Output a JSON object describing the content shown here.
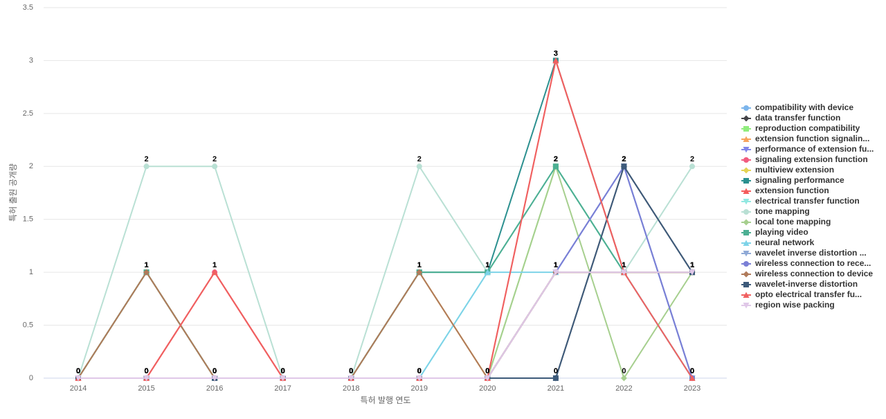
{
  "chart_data": {
    "type": "line",
    "x_label": "특허 발행 연도",
    "y_label": "특허 출원 공개량",
    "categories": [
      "2014",
      "2015",
      "2016",
      "2017",
      "2018",
      "2019",
      "2020",
      "2021",
      "2022",
      "2023"
    ],
    "ylim": [
      0,
      3.5
    ],
    "yticks": [
      0,
      0.5,
      1,
      1.5,
      2,
      2.5,
      3,
      3.5
    ],
    "grid": true,
    "series": [
      {
        "name": "compatibility with device",
        "color": "#7cb5ec",
        "values": [
          0,
          0,
          0,
          0,
          0,
          0,
          0,
          1,
          2,
          0
        ]
      },
      {
        "name": "data transfer function",
        "color": "#434348",
        "values": [
          0,
          0,
          0,
          0,
          0,
          0,
          0,
          0,
          2,
          1
        ]
      },
      {
        "name": "reproduction compatibility",
        "color": "#90ed7d",
        "values": [
          0,
          0,
          0,
          0,
          0,
          0,
          0,
          2,
          1,
          1
        ]
      },
      {
        "name": "extension function signalin...",
        "color": "#f7a35c",
        "values": [
          0,
          1,
          0,
          0,
          0,
          1,
          0,
          1,
          1,
          1
        ]
      },
      {
        "name": "performance of extension fu...",
        "color": "#8085e9",
        "values": [
          0,
          0,
          0,
          0,
          0,
          0,
          0,
          1,
          2,
          0
        ]
      },
      {
        "name": "signaling extension function",
        "color": "#f15c80",
        "values": [
          0,
          0,
          1,
          0,
          0,
          0,
          0,
          1,
          1,
          1
        ]
      },
      {
        "name": "multiview extension",
        "color": "#e4d354",
        "values": [
          0,
          1,
          0,
          0,
          0,
          1,
          0,
          1,
          1,
          1
        ]
      },
      {
        "name": "signaling performance",
        "color": "#2b908f",
        "values": [
          0,
          1,
          0,
          0,
          0,
          1,
          1,
          3,
          1,
          1
        ]
      },
      {
        "name": "extension function",
        "color": "#f45b5b",
        "values": [
          0,
          0,
          1,
          0,
          0,
          0,
          0,
          3,
          1,
          0
        ]
      },
      {
        "name": "electrical transfer function",
        "color": "#91e8e1",
        "values": [
          0,
          0,
          0,
          0,
          0,
          0,
          1,
          2,
          1,
          0
        ]
      },
      {
        "name": "tone mapping",
        "color": "#b9e0d4",
        "values": [
          0,
          2,
          2,
          0,
          0,
          2,
          1,
          2,
          1,
          2
        ]
      },
      {
        "name": "local tone mapping",
        "color": "#a6cf8e",
        "values": [
          0,
          0,
          0,
          0,
          0,
          0,
          0,
          2,
          0,
          1
        ]
      },
      {
        "name": "playing video",
        "color": "#4caf93",
        "values": [
          0,
          1,
          0,
          0,
          0,
          1,
          1,
          2,
          1,
          0
        ]
      },
      {
        "name": "neural network",
        "color": "#7dd3e8",
        "values": [
          0,
          0,
          0,
          0,
          0,
          0,
          1,
          1,
          1,
          0
        ]
      },
      {
        "name": "wavelet inverse distortion ...",
        "color": "#8fa9d6",
        "values": [
          0,
          0,
          0,
          0,
          0,
          0,
          0,
          1,
          2,
          0
        ]
      },
      {
        "name": "wireless connection to rece...",
        "color": "#7a7fd6",
        "values": [
          0,
          0,
          0,
          0,
          0,
          0,
          0,
          1,
          2,
          0
        ]
      },
      {
        "name": "wireless connection to device",
        "color": "#b07a5a",
        "values": [
          0,
          1,
          0,
          0,
          0,
          1,
          0,
          1,
          1,
          1
        ]
      },
      {
        "name": "wavelet-inverse distortion",
        "color": "#3d5a7a",
        "values": [
          0,
          0,
          0,
          0,
          0,
          0,
          0,
          0,
          2,
          1
        ]
      },
      {
        "name": "opto electrical transfer fu...",
        "color": "#f06060",
        "values": [
          0,
          0,
          1,
          0,
          0,
          0,
          0,
          3,
          1,
          0
        ]
      },
      {
        "name": "region wise packing",
        "color": "#e0c8e8",
        "values": [
          0,
          0,
          0,
          0,
          0,
          0,
          0,
          1,
          1,
          1
        ]
      }
    ]
  }
}
